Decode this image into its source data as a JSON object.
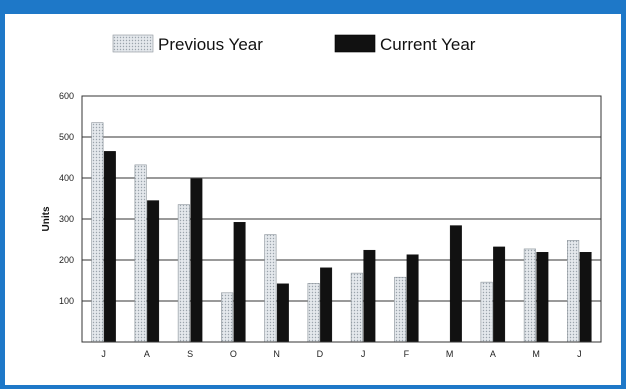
{
  "chart_data": {
    "type": "bar",
    "categories": [
      "J",
      "A",
      "S",
      "O",
      "N",
      "D",
      "J",
      "F",
      "M",
      "A",
      "M",
      "J"
    ],
    "series": [
      {
        "name": "Previous Year",
        "values": [
          535,
          432,
          335,
          120,
          262,
          143,
          168,
          158,
          0,
          146,
          227,
          248
        ]
      },
      {
        "name": "Current Year",
        "values": [
          465,
          345,
          398,
          292,
          142,
          181,
          224,
          213,
          284,
          232,
          219,
          219
        ]
      }
    ],
    "title": "",
    "xlabel": "",
    "ylabel": "Units",
    "ylim": [
      0,
      600
    ],
    "yticks": [
      100,
      200,
      300,
      400,
      500,
      600
    ],
    "grid": true,
    "legend_position": "top",
    "colors": {
      "frame": "#1e78c8",
      "previous_fill": "#f2f4f6",
      "current_fill": "#111111",
      "gridline": "#333333"
    }
  }
}
